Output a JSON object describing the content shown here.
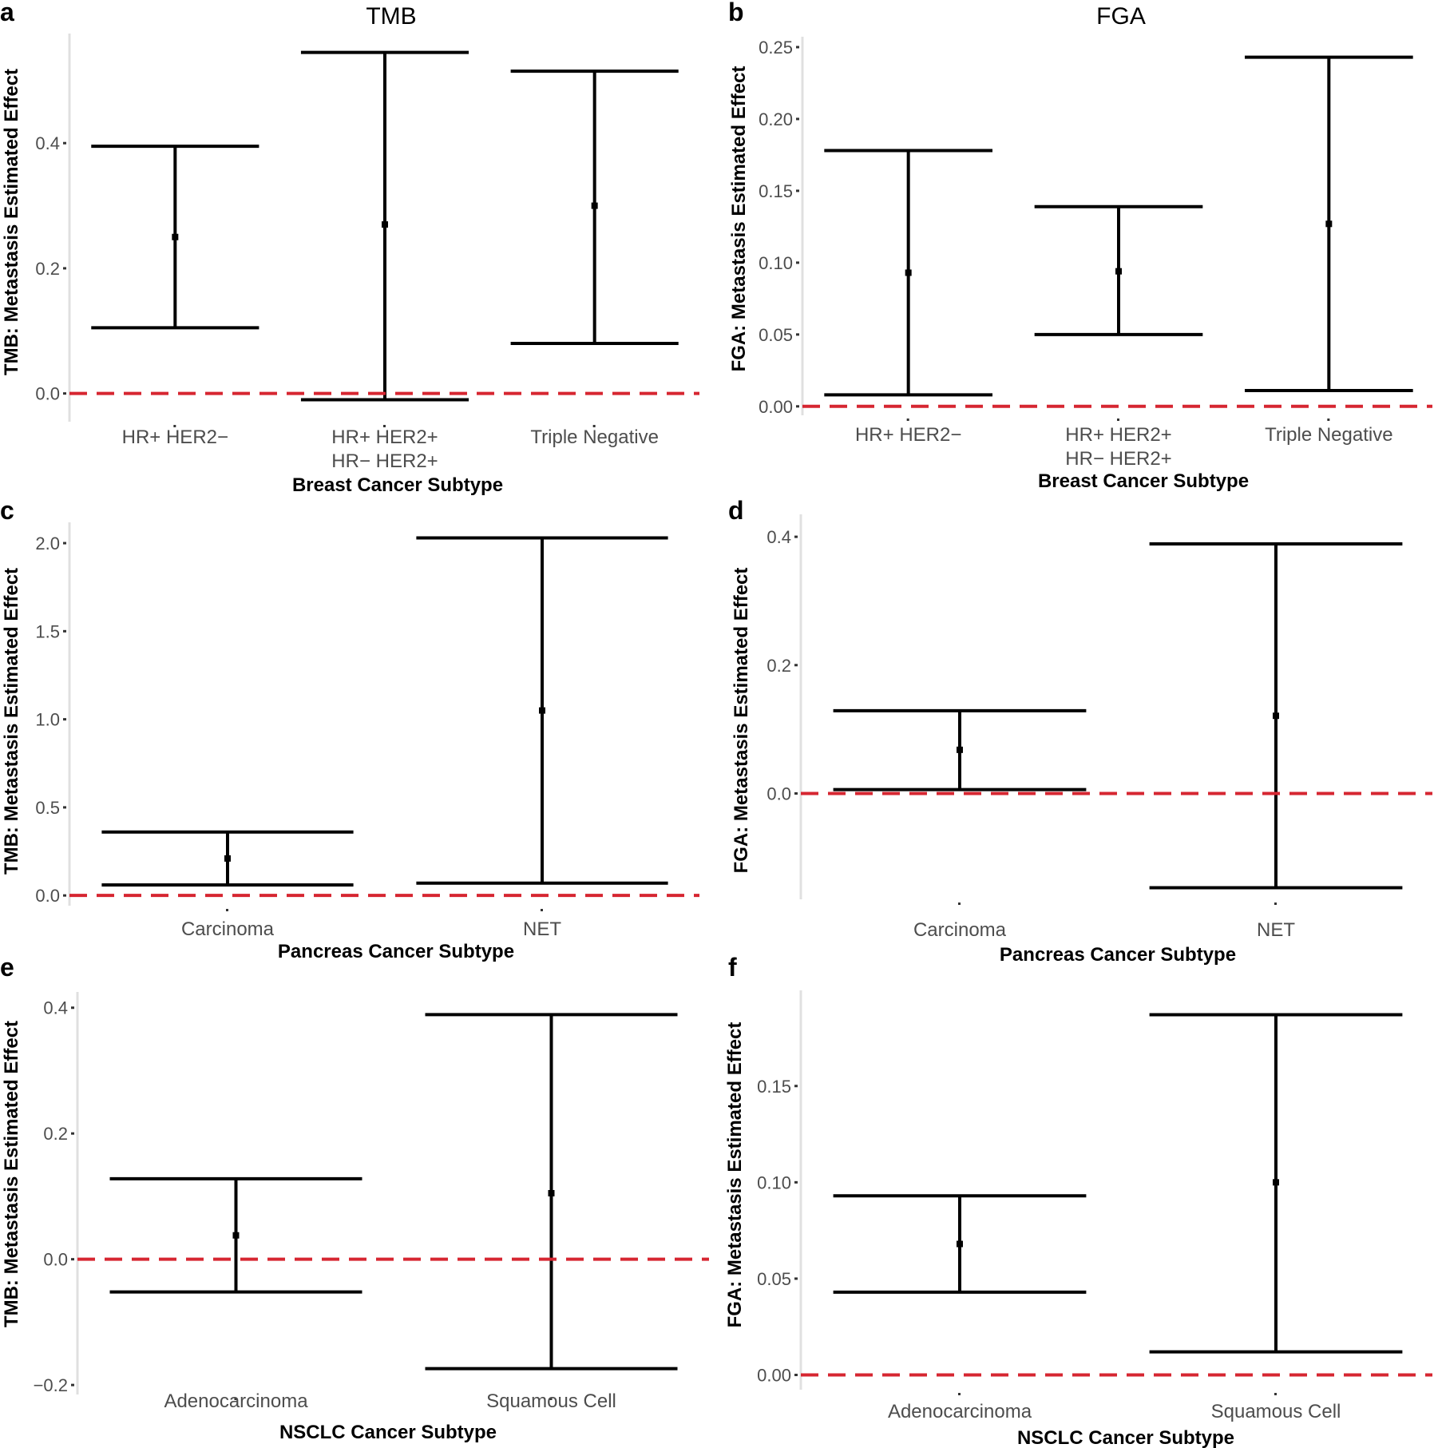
{
  "colors": {
    "errorbar": "#000000",
    "reference_line": "#d62631",
    "axis_line": "#e0e0e0",
    "tick_text": "#4d4d4d"
  },
  "chart_data": [
    {
      "panel": "a",
      "title": "TMB",
      "type": "errorbar",
      "xlabel": "Breast Cancer Subtype",
      "ylabel": "TMB: Metastasis Estimated Effect",
      "ylim": [
        -0.04,
        0.57
      ],
      "yticks": [
        "0.0",
        "0.2",
        "0.4"
      ],
      "categories": [
        [
          "HR+ HER2−"
        ],
        [
          "HR+ HER2+",
          "HR− HER2+"
        ],
        [
          "Triple Negative"
        ]
      ],
      "estimate": [
        0.25,
        0.27,
        0.3
      ],
      "lower": [
        0.105,
        -0.01,
        0.08
      ],
      "upper": [
        0.395,
        0.545,
        0.515
      ],
      "reference_line": 0
    },
    {
      "panel": "b",
      "title": "FGA",
      "type": "errorbar",
      "xlabel": "Breast Cancer Subtype",
      "ylabel": "FGA: Metastasis Estimated Effect",
      "ylim": [
        -0.004,
        0.255
      ],
      "yticks": [
        "0.00",
        "0.05",
        "0.10",
        "0.15",
        "0.20",
        "0.25"
      ],
      "categories": [
        [
          "HR+ HER2−"
        ],
        [
          "HR+ HER2+",
          "HR− HER2+"
        ],
        [
          "Triple Negative"
        ]
      ],
      "estimate": [
        0.093,
        0.094,
        0.127
      ],
      "lower": [
        0.008,
        0.05,
        0.011
      ],
      "upper": [
        0.178,
        0.139,
        0.243
      ],
      "reference_line": 0
    },
    {
      "panel": "c",
      "title": "",
      "type": "errorbar",
      "xlabel": "Pancreas Cancer Subtype",
      "ylabel": "TMB: Metastasis Estimated Effect",
      "ylim": [
        -0.04,
        2.1
      ],
      "yticks": [
        "0.0",
        "0.5",
        "1.0",
        "1.5",
        "2.0"
      ],
      "categories": [
        [
          "Carcinoma"
        ],
        [
          "NET"
        ]
      ],
      "estimate": [
        0.21,
        1.05
      ],
      "lower": [
        0.06,
        0.07
      ],
      "upper": [
        0.36,
        2.03
      ],
      "reference_line": 0
    },
    {
      "panel": "d",
      "title": "",
      "type": "errorbar",
      "xlabel": "Pancreas Cancer Subtype",
      "ylabel": "FGA: Metastasis Estimated Effect",
      "ylim": [
        -0.16,
        0.43
      ],
      "yticks": [
        "0.0",
        "0.2",
        "0.4"
      ],
      "categories": [
        [
          "Carcinoma"
        ],
        [
          "NET"
        ]
      ],
      "estimate": [
        0.068,
        0.121
      ],
      "lower": [
        0.006,
        -0.147
      ],
      "upper": [
        0.129,
        0.389
      ],
      "reference_line": 0
    },
    {
      "panel": "e",
      "title": "",
      "type": "errorbar",
      "xlabel": "NSCLC Cancer Subtype",
      "ylabel": "TMB: Metastasis Estimated Effect",
      "ylim": [
        -0.21,
        0.42
      ],
      "yticks": [
        "−0.2",
        "0.0",
        "0.2",
        "0.4"
      ],
      "categories": [
        [
          "Adenocarcinoma"
        ],
        [
          "Squamous Cell"
        ]
      ],
      "estimate": [
        0.038,
        0.105
      ],
      "lower": [
        -0.052,
        -0.174
      ],
      "upper": [
        0.128,
        0.389
      ],
      "reference_line": 0
    },
    {
      "panel": "f",
      "title": "",
      "type": "errorbar",
      "xlabel": "NSCLC Cancer Subtype",
      "ylabel": "FGA: Metastasis Estimated Effect",
      "ylim": [
        -0.006,
        0.198
      ],
      "yticks": [
        "0.00",
        "0.05",
        "0.10",
        "0.15"
      ],
      "categories": [
        [
          "Adenocarcinoma"
        ],
        [
          "Squamous Cell"
        ]
      ],
      "estimate": [
        0.068,
        0.1
      ],
      "lower": [
        0.043,
        0.012
      ],
      "upper": [
        0.093,
        0.187
      ],
      "reference_line": 0
    }
  ]
}
